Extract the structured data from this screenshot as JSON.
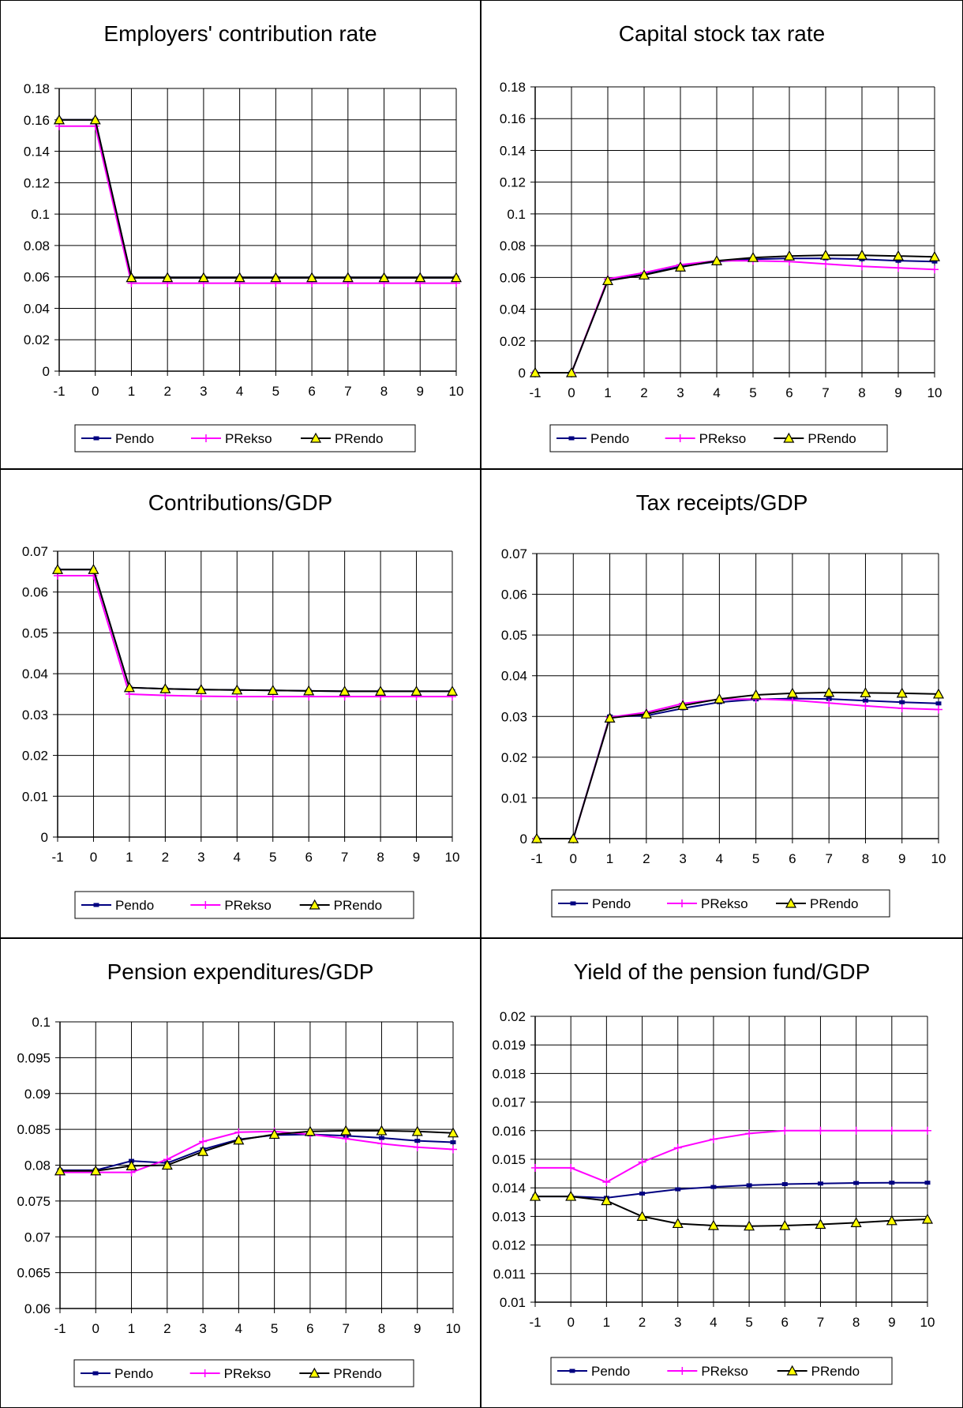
{
  "colors": {
    "pendo": "#000080",
    "prekso": "#ff00ff",
    "prendo": "#000000",
    "marker_fill": "#ffff00",
    "grid": "#000000",
    "border": "#000000"
  },
  "legend": [
    "Pendo",
    "PRekso",
    "PRendo"
  ],
  "chart_data": [
    {
      "type": "line",
      "title": "Employers' contribution rate",
      "x": [
        -1,
        0,
        1,
        2,
        3,
        4,
        5,
        6,
        7,
        8,
        9,
        10
      ],
      "ylim": [
        0,
        0.18
      ],
      "ystep": 0.02,
      "yticks": [
        "0",
        "0.02",
        "0.04",
        "0.06",
        "0.08",
        "0.1",
        "0.12",
        "0.14",
        "0.16",
        "0.18"
      ],
      "grid": true,
      "legend_position": "bottom",
      "series": [
        {
          "name": "Pendo",
          "values": [
            0.16,
            0.16,
            0.0595,
            0.0595,
            0.0595,
            0.0595,
            0.0595,
            0.0595,
            0.0595,
            0.0595,
            0.0595,
            0.0595
          ]
        },
        {
          "name": "PRekso",
          "values": [
            0.156,
            0.156,
            0.056,
            0.056,
            0.056,
            0.056,
            0.056,
            0.056,
            0.056,
            0.056,
            0.056,
            0.056
          ]
        },
        {
          "name": "PRendo",
          "values": [
            0.16,
            0.16,
            0.0595,
            0.0595,
            0.0595,
            0.0595,
            0.0595,
            0.0595,
            0.0595,
            0.0595,
            0.0595,
            0.0595
          ]
        }
      ]
    },
    {
      "type": "line",
      "title": "Capital stock tax rate",
      "x": [
        -1,
        0,
        1,
        2,
        3,
        4,
        5,
        6,
        7,
        8,
        9,
        10
      ],
      "ylim": [
        0,
        0.18
      ],
      "ystep": 0.02,
      "yticks": [
        "0",
        "0.02",
        "0.04",
        "0.06",
        "0.08",
        "0.1",
        "0.12",
        "0.14",
        "0.16",
        "0.18"
      ],
      "grid": true,
      "legend_position": "bottom",
      "series": [
        {
          "name": "Pendo",
          "values": [
            0,
            0,
            0.058,
            0.062,
            0.067,
            0.07,
            0.0715,
            0.072,
            0.072,
            0.0715,
            0.0705,
            0.07
          ]
        },
        {
          "name": "PRekso",
          "values": [
            0,
            0,
            0.059,
            0.063,
            0.068,
            0.0705,
            0.0705,
            0.07,
            0.0685,
            0.067,
            0.066,
            0.065
          ]
        },
        {
          "name": "PRendo",
          "values": [
            0,
            0,
            0.058,
            0.0615,
            0.0665,
            0.0705,
            0.0725,
            0.0735,
            0.074,
            0.074,
            0.0735,
            0.073
          ]
        }
      ]
    },
    {
      "type": "line",
      "title": "Contributions/GDP",
      "x": [
        -1,
        0,
        1,
        2,
        3,
        4,
        5,
        6,
        7,
        8,
        9,
        10
      ],
      "ylim": [
        0,
        0.07
      ],
      "ystep": 0.01,
      "yticks": [
        "0",
        "0.01",
        "0.02",
        "0.03",
        "0.04",
        "0.05",
        "0.06",
        "0.07"
      ],
      "grid": true,
      "legend_position": "bottom",
      "series": [
        {
          "name": "Pendo",
          "values": [
            0.0655,
            0.0655,
            0.0366,
            0.0363,
            0.0361,
            0.036,
            0.0359,
            0.0358,
            0.0357,
            0.0357,
            0.0357,
            0.0357
          ]
        },
        {
          "name": "PRekso",
          "values": [
            0.064,
            0.064,
            0.035,
            0.0347,
            0.0345,
            0.0344,
            0.0344,
            0.0344,
            0.0344,
            0.0344,
            0.0344,
            0.0344
          ]
        },
        {
          "name": "PRendo",
          "values": [
            0.0655,
            0.0655,
            0.0366,
            0.0363,
            0.0361,
            0.036,
            0.0359,
            0.0358,
            0.0357,
            0.0357,
            0.0357,
            0.0357
          ]
        }
      ]
    },
    {
      "type": "line",
      "title": "Tax receipts/GDP",
      "x": [
        -1,
        0,
        1,
        2,
        3,
        4,
        5,
        6,
        7,
        8,
        9,
        10
      ],
      "ylim": [
        0,
        0.07
      ],
      "ystep": 0.01,
      "yticks": [
        "0",
        "0.01",
        "0.02",
        "0.03",
        "0.04",
        "0.05",
        "0.06",
        "0.07"
      ],
      "grid": true,
      "legend_position": "bottom",
      "series": [
        {
          "name": "Pendo",
          "values": [
            0,
            0,
            0.03,
            0.0302,
            0.032,
            0.0335,
            0.0342,
            0.0344,
            0.0343,
            0.0339,
            0.0335,
            0.0332
          ]
        },
        {
          "name": "PRekso",
          "values": [
            0,
            0,
            0.0298,
            0.031,
            0.0332,
            0.0342,
            0.0343,
            0.034,
            0.0333,
            0.0326,
            0.032,
            0.0317
          ]
        },
        {
          "name": "PRendo",
          "values": [
            0,
            0,
            0.0296,
            0.0306,
            0.0327,
            0.0343,
            0.0353,
            0.0357,
            0.0359,
            0.0358,
            0.0357,
            0.0355
          ]
        }
      ]
    },
    {
      "type": "line",
      "title": "Pension expenditures/GDP",
      "x": [
        -1,
        0,
        1,
        2,
        3,
        4,
        5,
        6,
        7,
        8,
        9,
        10
      ],
      "ylim": [
        0.06,
        0.1
      ],
      "ystep": 0.005,
      "yticks": [
        "0.06",
        "0.065",
        "0.07",
        "0.075",
        "0.08",
        "0.085",
        "0.09",
        "0.095",
        "0.1"
      ],
      "grid": true,
      "legend_position": "bottom",
      "series": [
        {
          "name": "Pendo",
          "values": [
            0.0793,
            0.0793,
            0.0806,
            0.0803,
            0.0822,
            0.0836,
            0.0842,
            0.0843,
            0.0841,
            0.0838,
            0.0834,
            0.0832
          ]
        },
        {
          "name": "PRekso",
          "values": [
            0.079,
            0.079,
            0.079,
            0.0808,
            0.0833,
            0.0846,
            0.0847,
            0.0843,
            0.0837,
            0.083,
            0.0825,
            0.0822
          ]
        },
        {
          "name": "PRendo",
          "values": [
            0.0792,
            0.0792,
            0.0799,
            0.08,
            0.0819,
            0.0835,
            0.0843,
            0.0847,
            0.0848,
            0.0848,
            0.0847,
            0.0845
          ]
        }
      ]
    },
    {
      "type": "line",
      "title": "Yield of the pension fund/GDP",
      "x": [
        -1,
        0,
        1,
        2,
        3,
        4,
        5,
        6,
        7,
        8,
        9,
        10
      ],
      "ylim": [
        0.01,
        0.02
      ],
      "ystep": 0.001,
      "yticks": [
        "0.01",
        "0.011",
        "0.012",
        "0.013",
        "0.014",
        "0.015",
        "0.016",
        "0.017",
        "0.018",
        "0.019",
        "0.02"
      ],
      "grid": true,
      "legend_position": "bottom",
      "series": [
        {
          "name": "Pendo",
          "values": [
            0.0137,
            0.0137,
            0.01365,
            0.0138,
            0.01395,
            0.01403,
            0.01409,
            0.01413,
            0.01415,
            0.01417,
            0.01418,
            0.01418
          ]
        },
        {
          "name": "PRekso",
          "values": [
            0.0147,
            0.0147,
            0.0142,
            0.0149,
            0.0154,
            0.0157,
            0.0159,
            0.016,
            0.016,
            0.016,
            0.016,
            0.016
          ]
        },
        {
          "name": "PRendo",
          "values": [
            0.0137,
            0.0137,
            0.01355,
            0.013,
            0.01275,
            0.01268,
            0.01266,
            0.01268,
            0.01272,
            0.01278,
            0.01285,
            0.0129
          ]
        }
      ]
    }
  ]
}
